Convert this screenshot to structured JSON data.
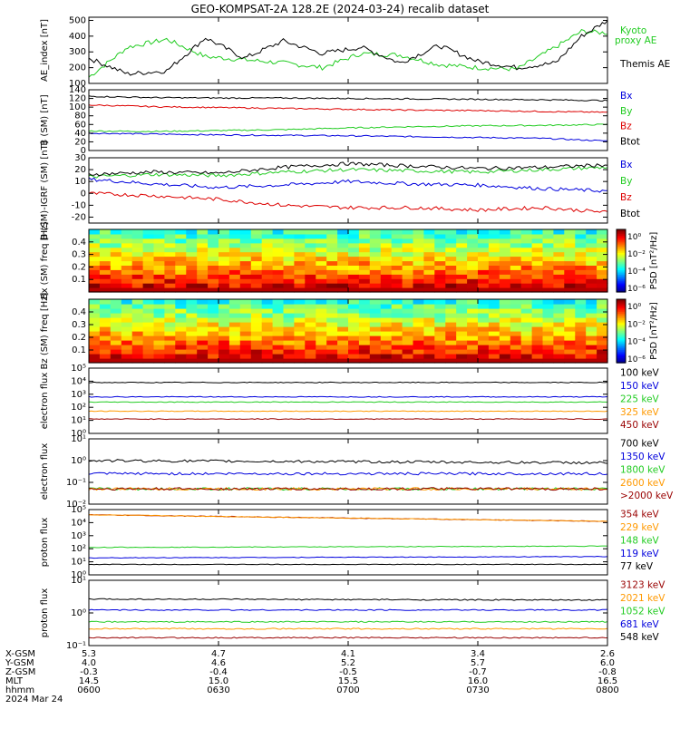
{
  "title": "GEO-KOMPSAT-2A 128.2E (2024-03-24) recalib dataset",
  "colors": {
    "black": "#000000",
    "red": "#dd0000",
    "green": "#22cc22",
    "blue": "#0000dd",
    "orange": "#ff9900",
    "darkred": "#990000",
    "cyan_blue": "#1155ff"
  },
  "footer": {
    "row_labels": [
      "X-GSM",
      "Y-GSM",
      "Z-GSM",
      "MLT",
      "hhmm",
      "2024 Mar 24"
    ],
    "columns": [
      {
        "x_gsm": "5.3",
        "y_gsm": "4.0",
        "z_gsm": "-0.3",
        "mlt": "14.5",
        "hhmm": "0600"
      },
      {
        "x_gsm": "4.7",
        "y_gsm": "4.6",
        "z_gsm": "-0.4",
        "mlt": "15.0",
        "hhmm": "0630"
      },
      {
        "x_gsm": "4.1",
        "y_gsm": "5.2",
        "z_gsm": "-0.5",
        "mlt": "15.5",
        "hhmm": "0700"
      },
      {
        "x_gsm": "3.4",
        "y_gsm": "5.7",
        "z_gsm": "-0.7",
        "mlt": "16.0",
        "hhmm": "0730"
      },
      {
        "x_gsm": "2.6",
        "y_gsm": "6.0",
        "z_gsm": "-0.8",
        "mlt": "16.5",
        "hhmm": "0800"
      }
    ]
  },
  "chart_data": [
    {
      "id": "ae",
      "type": "line",
      "ylabel": "AE_index [nT]",
      "ylim": [
        100,
        520
      ],
      "yticks": [
        "100",
        "200",
        "300",
        "400",
        "500"
      ],
      "x": [
        6.0,
        6.15,
        6.3,
        6.45,
        6.6,
        6.75,
        6.9,
        7.05,
        7.2,
        7.35,
        7.5,
        7.65,
        7.8,
        7.9,
        8.0
      ],
      "series": [
        {
          "name": "Kyoto proxy AE",
          "color": "green",
          "values": [
            140,
            330,
            380,
            270,
            250,
            230,
            200,
            290,
            280,
            220,
            200,
            190,
            330,
            430,
            420
          ]
        },
        {
          "name": "Themis AE",
          "color": "black",
          "values": [
            260,
            160,
            180,
            390,
            260,
            370,
            290,
            330,
            230,
            340,
            240,
            200,
            230,
            400,
            500
          ]
        }
      ],
      "legend": [
        "Kyoto",
        "proxy AE",
        "Themis AE"
      ]
    },
    {
      "id": "bsm",
      "type": "line",
      "ylabel": "B (SM) [nT]",
      "ylim": [
        0,
        140
      ],
      "yticks": [
        "0",
        "20",
        "40",
        "60",
        "80",
        "100",
        "120",
        "140"
      ],
      "x": [
        6.0,
        6.25,
        6.5,
        6.75,
        7.0,
        7.25,
        7.5,
        7.75,
        8.0
      ],
      "series": [
        {
          "name": "Bx",
          "color": "blue",
          "values": [
            40,
            38,
            36,
            35,
            34,
            32,
            30,
            28,
            22
          ]
        },
        {
          "name": "By",
          "color": "green",
          "values": [
            45,
            44,
            46,
            48,
            52,
            55,
            57,
            58,
            60
          ]
        },
        {
          "name": "Bz",
          "color": "red",
          "values": [
            105,
            101,
            99,
            97,
            95,
            93,
            92,
            90,
            88
          ]
        },
        {
          "name": "Btot",
          "color": "black",
          "values": [
            125,
            122,
            121,
            121,
            120,
            119,
            118,
            117,
            115
          ]
        }
      ]
    },
    {
      "id": "bigrf",
      "type": "line",
      "ylabel": "B (SM)-IGRF (SM) [nT]",
      "ylim": [
        -25,
        30
      ],
      "yticks": [
        "-20",
        "-10",
        "0",
        "10",
        "20",
        "30"
      ],
      "x": [
        6.0,
        6.25,
        6.5,
        6.75,
        7.0,
        7.25,
        7.5,
        7.75,
        8.0
      ],
      "series": [
        {
          "name": "Bx",
          "color": "blue",
          "values": [
            12,
            8,
            5,
            7,
            10,
            8,
            7,
            4,
            2
          ]
        },
        {
          "name": "By",
          "color": "green",
          "values": [
            14,
            16,
            15,
            18,
            20,
            19,
            18,
            20,
            22
          ]
        },
        {
          "name": "Bz",
          "color": "red",
          "values": [
            0,
            -2,
            -5,
            -10,
            -12,
            -12,
            -14,
            -12,
            -16
          ]
        },
        {
          "name": "Btot",
          "color": "black",
          "values": [
            16,
            18,
            17,
            22,
            25,
            23,
            21,
            22,
            24
          ]
        }
      ]
    },
    {
      "id": "bx_spec",
      "type": "heatmap",
      "ylabel": "Bx (SM) freq [Hz]",
      "ylim": [
        0,
        0.5
      ],
      "yticks": [
        "0.1",
        "0.2",
        "0.3",
        "0.4"
      ],
      "colorbar": {
        "label": "PSD [nT²/Hz]",
        "ticks": [
          "10⁰",
          "10⁻²",
          "10⁻⁴",
          "10⁻⁶"
        ]
      }
    },
    {
      "id": "bz_spec",
      "type": "heatmap",
      "ylabel": "Bz (SM) freq [Hz]",
      "ylim": [
        0,
        0.5
      ],
      "yticks": [
        "0.1",
        "0.2",
        "0.3",
        "0.4"
      ],
      "colorbar": {
        "label": "PSD [nT²/Hz]",
        "ticks": [
          "10⁰",
          "10⁻²",
          "10⁻⁴",
          "10⁻⁶"
        ]
      }
    },
    {
      "id": "elec1",
      "type": "line",
      "ylabel": "electron flux",
      "yscale": "log",
      "ylim": [
        0,
        5
      ],
      "yticks": [
        "10⁰",
        "10¹",
        "10²",
        "10³",
        "10⁴",
        "10⁵"
      ],
      "x": [
        6.0,
        8.0
      ],
      "series": [
        {
          "name": "100 keV",
          "color": "black",
          "values": [
            3.9,
            3.9
          ]
        },
        {
          "name": "150 keV",
          "color": "blue",
          "values": [
            2.8,
            2.8
          ]
        },
        {
          "name": "225 keV",
          "color": "green",
          "values": [
            2.4,
            2.4
          ]
        },
        {
          "name": "325 keV",
          "color": "orange",
          "values": [
            1.7,
            1.7
          ]
        },
        {
          "name": "450 keV",
          "color": "darkred",
          "values": [
            1.1,
            1.1
          ]
        }
      ]
    },
    {
      "id": "elec2",
      "type": "line",
      "ylabel": "electron flux",
      "yscale": "log",
      "ylim": [
        -2,
        1
      ],
      "yticks": [
        "10⁻²",
        "10⁻¹",
        "10⁰",
        "10¹"
      ],
      "x": [
        6.0,
        8.0
      ],
      "series": [
        {
          "name": "700 keV",
          "color": "black",
          "values": [
            0.0,
            -0.1
          ]
        },
        {
          "name": "1350 keV",
          "color": "blue",
          "values": [
            -0.6,
            -0.6
          ]
        },
        {
          "name": "1800 keV",
          "color": "green",
          "values": [
            -1.3,
            -1.3
          ]
        },
        {
          "name": "2600 keV",
          "color": "orange",
          "values": [
            -1.3,
            -1.3
          ]
        },
        {
          "name": ">2000 keV",
          "color": "darkred",
          "values": [
            -1.3,
            -1.3
          ]
        }
      ]
    },
    {
      "id": "prot1",
      "type": "line",
      "ylabel": "proton flux",
      "yscale": "log",
      "ylim": [
        0,
        5
      ],
      "yticks": [
        "10⁰",
        "10¹",
        "10²",
        "10³",
        "10⁴",
        "10⁵"
      ],
      "x": [
        6.0,
        8.0
      ],
      "series": [
        {
          "name": "354 keV",
          "color": "darkred",
          "values": [
            4.6,
            4.1
          ]
        },
        {
          "name": "229 keV",
          "color": "orange",
          "values": [
            4.6,
            4.1
          ]
        },
        {
          "name": "148 keV",
          "color": "green",
          "values": [
            2.1,
            2.2
          ]
        },
        {
          "name": "119 keV",
          "color": "blue",
          "values": [
            1.3,
            1.4
          ]
        },
        {
          "name": "77 keV",
          "color": "black",
          "values": [
            0.8,
            0.8
          ]
        }
      ]
    },
    {
      "id": "prot2",
      "type": "line",
      "ylabel": "proton flux",
      "yscale": "log",
      "ylim": [
        -1.3,
        2
      ],
      "yticks": [
        "10⁻¹",
        "10⁰",
        "10¹"
      ],
      "x": [
        6.0,
        8.0
      ],
      "series": [
        {
          "name": "3123 keV",
          "color": "black",
          "values": [
            1.05,
            1.0
          ]
        },
        {
          "name": "2021 keV",
          "color": "blue",
          "values": [
            0.5,
            0.5
          ]
        },
        {
          "name": "1052 keV",
          "color": "green",
          "values": [
            -0.1,
            -0.1
          ]
        },
        {
          "name": "681 keV",
          "color": "orange",
          "values": [
            -0.45,
            -0.45
          ]
        },
        {
          "name": "548 keV",
          "color": "darkred",
          "values": [
            -0.9,
            -0.9
          ]
        }
      ]
    }
  ],
  "legend_text_colors": {
    "bsm": [
      "blue",
      "green",
      "red",
      "black"
    ],
    "bigrf": [
      "blue",
      "green",
      "red",
      "black"
    ],
    "elec1": [
      "black",
      "blue",
      "green",
      "orange",
      "darkred"
    ],
    "elec2": [
      "black",
      "blue",
      "green",
      "orange",
      "darkred"
    ],
    "prot1": [
      "darkred",
      "orange",
      "green",
      "blue",
      "black"
    ],
    "prot2": [
      "darkred",
      "orange",
      "green",
      "blue",
      "black"
    ]
  }
}
